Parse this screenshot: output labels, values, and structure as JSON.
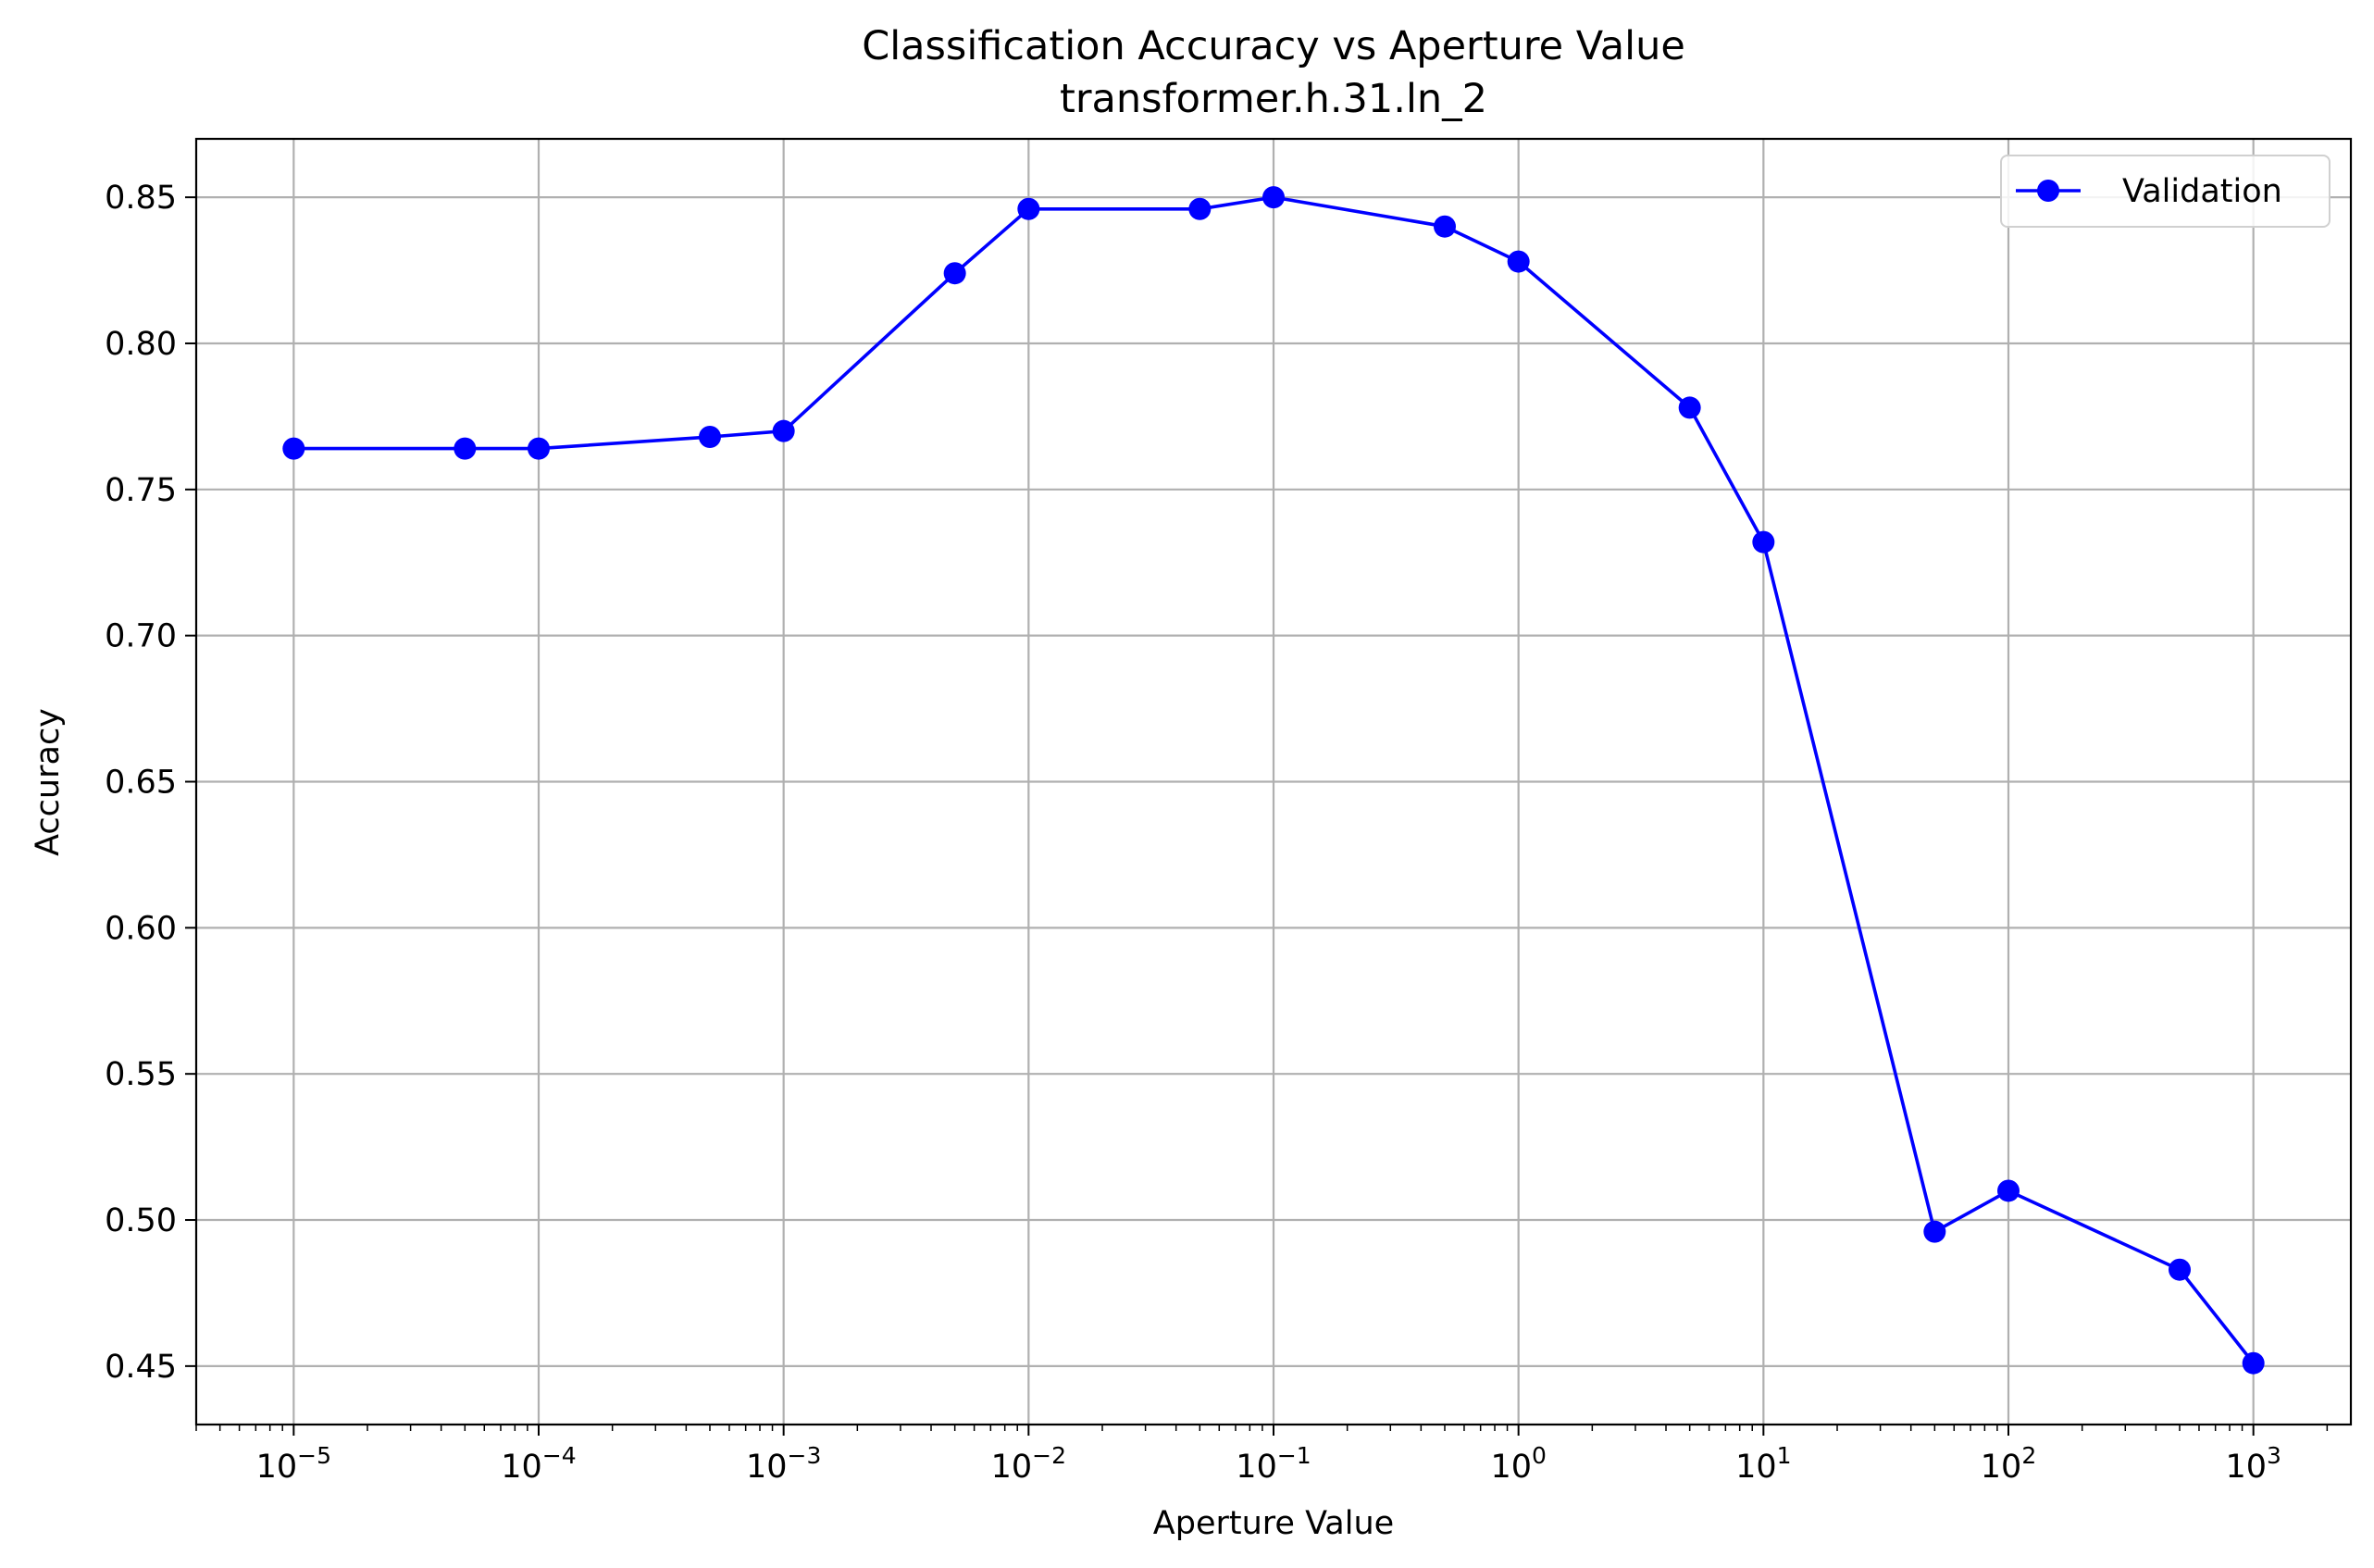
{
  "chart_data": {
    "type": "line",
    "title": "Classification Accuracy vs Aperture Value",
    "subtitle": "transformer.h.31.ln_2",
    "xlabel": "Aperture Value",
    "ylabel": "Accuracy",
    "xscale": "log",
    "xlim": [
      4e-06,
      2500
    ],
    "ylim": [
      0.43,
      0.87
    ],
    "grid": true,
    "legend_position": "top-right",
    "x_ticks": [
      {
        "value": 1e-05,
        "base": "10",
        "exp": "−5"
      },
      {
        "value": 0.0001,
        "base": "10",
        "exp": "−4"
      },
      {
        "value": 0.001,
        "base": "10",
        "exp": "−3"
      },
      {
        "value": 0.01,
        "base": "10",
        "exp": "−2"
      },
      {
        "value": 0.1,
        "base": "10",
        "exp": "−1"
      },
      {
        "value": 1,
        "base": "10",
        "exp": "0"
      },
      {
        "value": 10,
        "base": "10",
        "exp": "1"
      },
      {
        "value": 100,
        "base": "10",
        "exp": "2"
      },
      {
        "value": 1000,
        "base": "10",
        "exp": "3"
      }
    ],
    "y_ticks": [
      {
        "value": 0.45,
        "label": "0.45"
      },
      {
        "value": 0.5,
        "label": "0.50"
      },
      {
        "value": 0.55,
        "label": "0.55"
      },
      {
        "value": 0.6,
        "label": "0.60"
      },
      {
        "value": 0.65,
        "label": "0.65"
      },
      {
        "value": 0.7,
        "label": "0.70"
      },
      {
        "value": 0.75,
        "label": "0.75"
      },
      {
        "value": 0.8,
        "label": "0.80"
      },
      {
        "value": 0.85,
        "label": "0.85"
      }
    ],
    "series": [
      {
        "name": "Validation",
        "color": "#0000ff",
        "marker": "circle",
        "x": [
          1e-05,
          5e-05,
          0.0001,
          0.0005,
          0.001,
          0.005,
          0.01,
          0.05,
          0.1,
          0.5,
          1,
          5,
          10,
          50,
          100,
          500,
          1000
        ],
        "y": [
          0.764,
          0.764,
          0.764,
          0.768,
          0.77,
          0.824,
          0.846,
          0.846,
          0.85,
          0.84,
          0.828,
          0.778,
          0.732,
          0.496,
          0.51,
          0.483,
          0.451
        ]
      }
    ]
  }
}
